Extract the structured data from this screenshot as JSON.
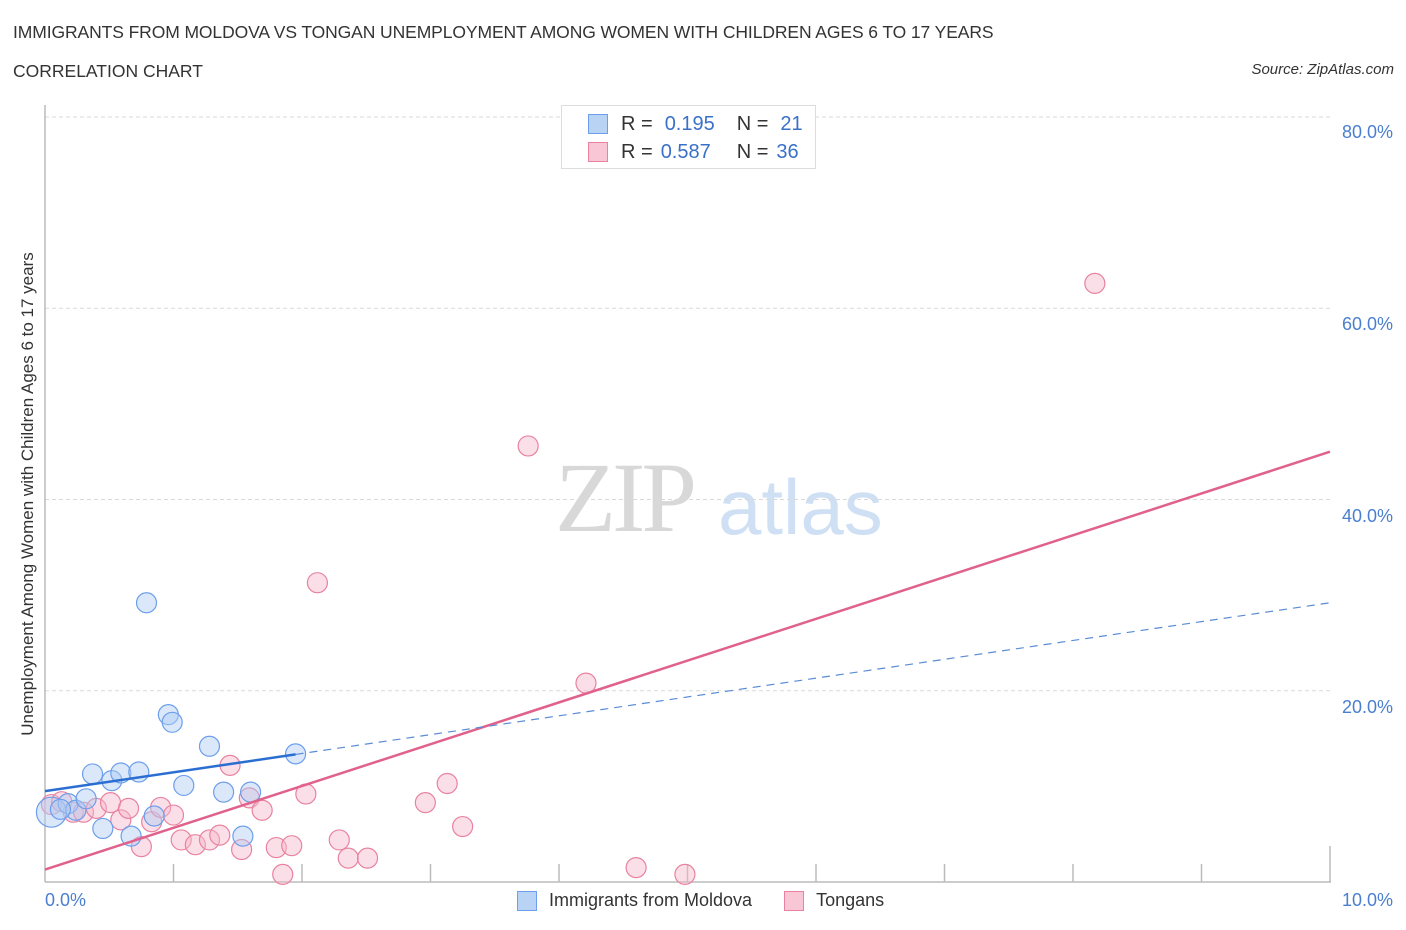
{
  "header": {
    "title": "IMMIGRANTS FROM MOLDOVA VS TONGAN UNEMPLOYMENT AMONG WOMEN WITH CHILDREN AGES 6 TO 17 YEARS",
    "subtitle": "CORRELATION CHART",
    "source": "Source: ZipAtlas.com"
  },
  "watermark": {
    "zip": "ZIP",
    "atlas": "atlas"
  },
  "stats_legend": [
    {
      "series": "Immigrants from Moldova",
      "r_label": "R =",
      "r_value": "0.195",
      "n_label": "N =",
      "n_value": "21",
      "color": "#6d9eeb",
      "fill": "#b9d3f5"
    },
    {
      "series": "Tongans",
      "r_label": "R =",
      "r_value": "0.587",
      "n_label": "N =",
      "n_value": "36",
      "color": "#e8829f",
      "fill": "#f9c6d6"
    }
  ],
  "legend": [
    {
      "label": "Immigrants from Moldova",
      "color": "#6d9eeb",
      "fill": "#b9d3f5"
    },
    {
      "label": "Tongans",
      "color": "#e8829f",
      "fill": "#f9c6d6"
    }
  ],
  "axes": {
    "ylabel": "Unemployment Among Women with Children Ages 6 to 17 years",
    "y_ticks": [
      "80.0%",
      "60.0%",
      "40.0%",
      "20.0%"
    ],
    "x_ticks": [
      "0.0%",
      "10.0%"
    ]
  },
  "chart_data": {
    "type": "scatter",
    "title": "IMMIGRANTS FROM MOLDOVA VS TONGAN UNEMPLOYMENT AMONG WOMEN WITH CHILDREN AGES 6 TO 17 YEARS",
    "subtitle": "CORRELATION CHART",
    "xlabel": "",
    "ylabel": "Unemployment Among Women with Children Ages 6 to 17 years",
    "xlim": [
      0,
      10
    ],
    "ylim": [
      0,
      80
    ],
    "x_ticks": [
      0,
      10
    ],
    "y_ticks": [
      20,
      40,
      60,
      80
    ],
    "grid": "horizontal dashed",
    "legend_position": "bottom",
    "series": [
      {
        "name": "Immigrants from Moldova",
        "color": "#6d9eeb",
        "r": 0.195,
        "n": 21,
        "points": [
          [
            0.05,
            7.3
          ],
          [
            0.18,
            8.2
          ],
          [
            0.24,
            7.5
          ],
          [
            0.32,
            8.7
          ],
          [
            0.37,
            11.3
          ],
          [
            0.45,
            5.6
          ],
          [
            0.52,
            10.6
          ],
          [
            0.59,
            11.4
          ],
          [
            0.67,
            4.8
          ],
          [
            0.73,
            11.5
          ],
          [
            0.79,
            29.2
          ],
          [
            0.85,
            6.9
          ],
          [
            0.96,
            17.5
          ],
          [
            0.99,
            16.7
          ],
          [
            1.08,
            10.1
          ],
          [
            1.28,
            14.2
          ],
          [
            1.39,
            9.4
          ],
          [
            1.54,
            4.8
          ],
          [
            1.6,
            9.4
          ],
          [
            1.95,
            13.4
          ],
          [
            0.12,
            7.6
          ]
        ],
        "trend": {
          "x": [
            0,
            10
          ],
          "y": [
            9.5,
            29.2
          ],
          "solid_until_x": 1.95
        }
      },
      {
        "name": "Tongans",
        "color": "#e8829f",
        "r": 0.587,
        "n": 36,
        "points": [
          [
            0.05,
            8.1
          ],
          [
            0.13,
            8.4
          ],
          [
            0.22,
            7.3
          ],
          [
            0.3,
            7.3
          ],
          [
            0.4,
            7.7
          ],
          [
            0.51,
            8.3
          ],
          [
            0.59,
            6.5
          ],
          [
            0.65,
            7.7
          ],
          [
            0.75,
            3.7
          ],
          [
            0.83,
            6.3
          ],
          [
            0.9,
            7.8
          ],
          [
            1.0,
            7.0
          ],
          [
            1.06,
            4.4
          ],
          [
            1.17,
            3.9
          ],
          [
            1.28,
            4.4
          ],
          [
            1.36,
            4.9
          ],
          [
            1.44,
            12.2
          ],
          [
            1.53,
            3.4
          ],
          [
            1.59,
            8.8
          ],
          [
            1.69,
            7.5
          ],
          [
            1.8,
            3.6
          ],
          [
            1.85,
            0.8
          ],
          [
            1.92,
            3.8
          ],
          [
            2.03,
            9.2
          ],
          [
            2.12,
            31.3
          ],
          [
            2.29,
            4.4
          ],
          [
            2.36,
            2.5
          ],
          [
            2.51,
            2.5
          ],
          [
            2.96,
            8.3
          ],
          [
            3.13,
            10.3
          ],
          [
            3.25,
            5.8
          ],
          [
            3.76,
            45.6
          ],
          [
            4.21,
            20.8
          ],
          [
            4.6,
            1.5
          ],
          [
            4.98,
            0.8
          ],
          [
            8.17,
            62.6
          ]
        ],
        "trend": {
          "x": [
            0,
            10
          ],
          "y": [
            1.3,
            45.0
          ]
        }
      }
    ]
  }
}
